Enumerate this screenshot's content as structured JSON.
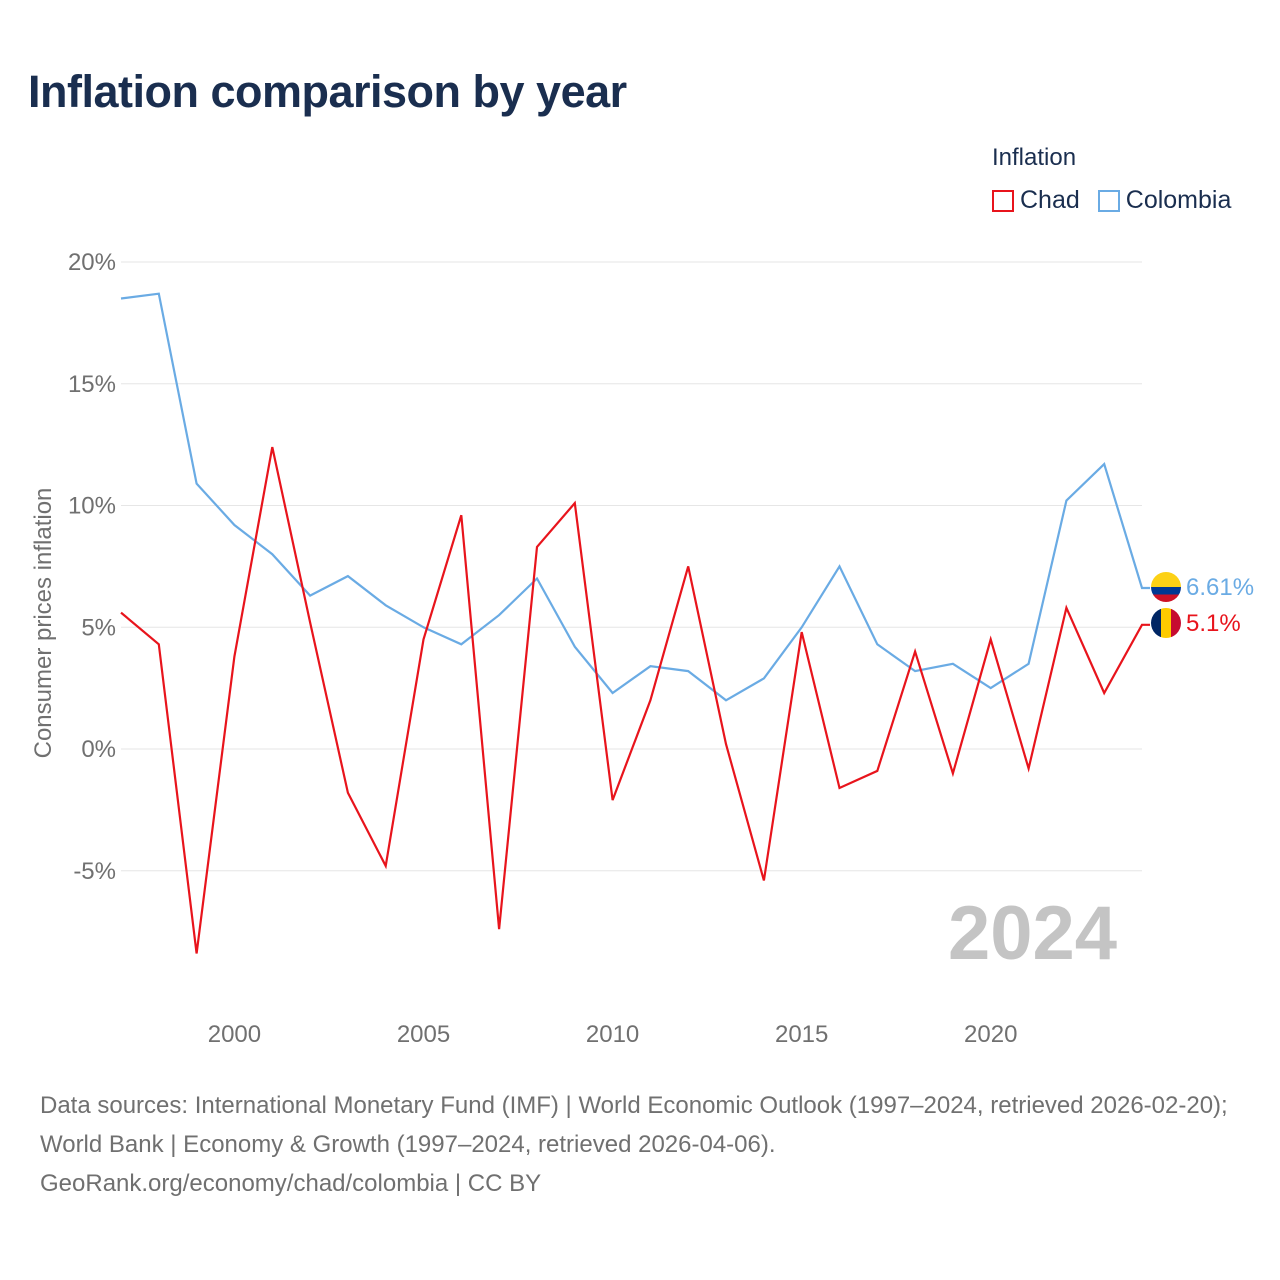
{
  "title": "Inflation comparison by year",
  "legend_title": "Inflation",
  "year_label": "2024",
  "footer": {
    "sources": "Data sources: International Monetary Fund (IMF) | World Economic Outlook (1997–2024, retrieved 2026-02-20); World Bank | Economy & Growth (1997–2024, retrieved 2026-04-06).",
    "attribution": "GeoRank.org/economy/chad/colombia | CC BY"
  },
  "chart_data": {
    "type": "line",
    "title": "Inflation comparison by year",
    "xlabel": "",
    "ylabel": "Consumer prices inflation",
    "xlim": [
      1997,
      2024
    ],
    "ylim": [
      -10,
      20
    ],
    "yticks": [
      20,
      15,
      10,
      5,
      0,
      -5
    ],
    "ytick_labels": [
      "20%",
      "15%",
      "10%",
      "5%",
      "0%",
      "-5%"
    ],
    "xticks": [
      2000,
      2005,
      2010,
      2015,
      2020
    ],
    "xtick_labels": [
      "2000",
      "2005",
      "2010",
      "2015",
      "2020"
    ],
    "grid": true,
    "legend_position": "top-right",
    "x": [
      1997,
      1998,
      1999,
      2000,
      2001,
      2002,
      2003,
      2004,
      2005,
      2006,
      2007,
      2008,
      2009,
      2010,
      2011,
      2012,
      2013,
      2014,
      2015,
      2016,
      2017,
      2018,
      2019,
      2020,
      2021,
      2022,
      2023,
      2024
    ],
    "series": [
      {
        "name": "Chad",
        "color": "#e8141c",
        "end_label": "5.1%",
        "values": [
          5.6,
          4.3,
          -8.4,
          3.8,
          12.4,
          5.2,
          -1.8,
          -4.8,
          4.5,
          9.6,
          -7.4,
          8.3,
          10.1,
          -2.1,
          2.0,
          7.5,
          0.2,
          -5.4,
          4.8,
          -1.6,
          -0.9,
          4.0,
          -1.0,
          4.5,
          -0.8,
          5.8,
          2.3,
          5.1
        ]
      },
      {
        "name": "Colombia",
        "color": "#6aabe4",
        "end_label": "6.61%",
        "values": [
          18.5,
          18.7,
          10.9,
          9.2,
          8.0,
          6.3,
          7.1,
          5.9,
          5.0,
          4.3,
          5.5,
          7.0,
          4.2,
          2.3,
          3.4,
          3.2,
          2.0,
          2.9,
          5.0,
          7.5,
          4.3,
          3.2,
          3.5,
          2.5,
          3.5,
          10.2,
          11.7,
          6.61
        ]
      }
    ]
  }
}
